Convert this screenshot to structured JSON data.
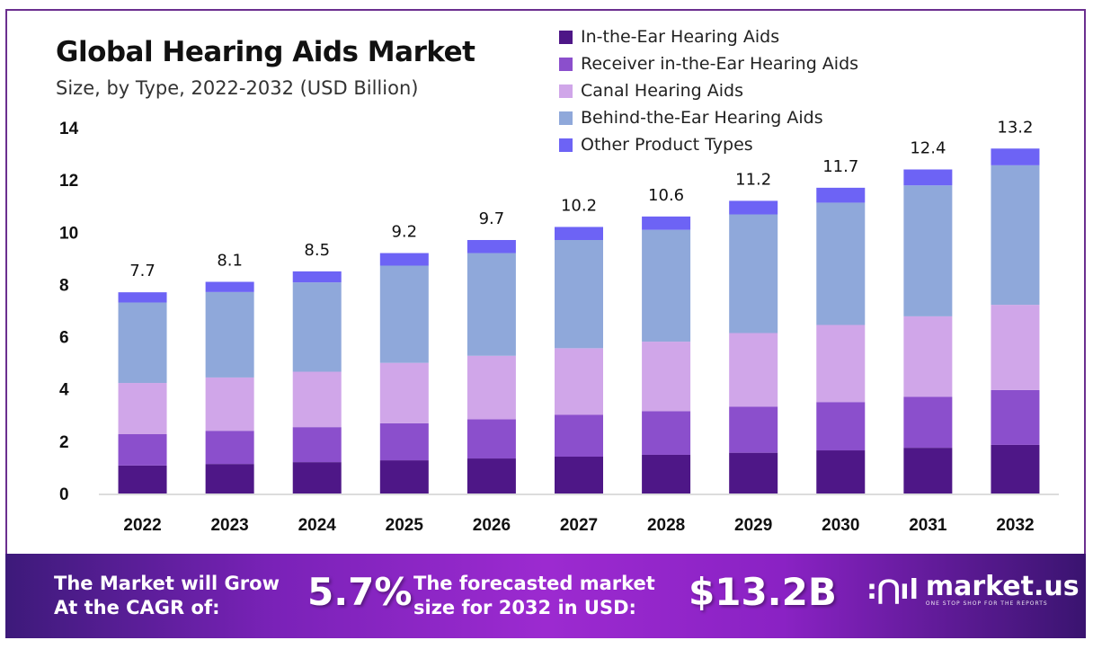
{
  "header": {
    "title": "Global Hearing Aids Market",
    "subtitle": "Size, by Type, 2022-2032 (USD Billion)"
  },
  "chart_data": {
    "type": "bar",
    "stacked": true,
    "title": "Global Hearing Aids Market",
    "subtitle": "Size, by Type, 2022-2032 (USD Billion)",
    "xlabel": "",
    "ylabel": "USD Billion",
    "ylim": [
      0,
      14
    ],
    "yticks": [
      0,
      2,
      4,
      6,
      8,
      10,
      12,
      14
    ],
    "grid": false,
    "legend_position": "top-right",
    "categories": [
      "2022",
      "2023",
      "2024",
      "2025",
      "2026",
      "2027",
      "2028",
      "2029",
      "2030",
      "2031",
      "2032"
    ],
    "totals": [
      7.7,
      8.1,
      8.5,
      9.2,
      9.7,
      10.2,
      10.6,
      11.2,
      11.7,
      12.4,
      13.2
    ],
    "total_labels": [
      "7.7",
      "8.1",
      "8.5",
      "9.2",
      "9.7",
      "10.2",
      "10.6",
      "11.2",
      "11.7",
      "12.4",
      "13.2"
    ],
    "series": [
      {
        "name": "In-the-Ear Hearing Aids",
        "color": "#4e1787",
        "values": [
          1.07,
          1.13,
          1.2,
          1.27,
          1.34,
          1.41,
          1.48,
          1.56,
          1.65,
          1.75,
          1.86
        ]
      },
      {
        "name": "Receiver in-the-Ear Hearing Aids",
        "color": "#8b4fcc",
        "values": [
          1.2,
          1.27,
          1.34,
          1.42,
          1.5,
          1.6,
          1.67,
          1.76,
          1.85,
          1.95,
          2.1
        ]
      },
      {
        "name": "Canal Hearing Aids",
        "color": "#d0a6e9",
        "values": [
          1.96,
          2.04,
          2.12,
          2.31,
          2.43,
          2.55,
          2.66,
          2.82,
          2.95,
          3.08,
          3.26
        ]
      },
      {
        "name": "Behind-the-Ear Hearing Aids",
        "color": "#8fa8da",
        "values": [
          3.08,
          3.27,
          3.42,
          3.72,
          3.93,
          4.14,
          4.28,
          4.54,
          4.68,
          5.01,
          5.34
        ]
      },
      {
        "name": "Other Product Types",
        "color": "#6d63f5",
        "values": [
          0.39,
          0.39,
          0.42,
          0.48,
          0.5,
          0.5,
          0.51,
          0.52,
          0.57,
          0.61,
          0.64
        ]
      }
    ]
  },
  "banner": {
    "cagr_label_line1": "The Market will Grow",
    "cagr_label_line2": "At the CAGR of:",
    "cagr_value": "5.7%",
    "forecast_label_line1": "The forecasted market",
    "forecast_label_line2": "size for 2032 in USD:",
    "forecast_value": "$13.2B",
    "logo_name": "market.us",
    "logo_tagline": "ONE STOP SHOP FOR THE REPORTS"
  }
}
